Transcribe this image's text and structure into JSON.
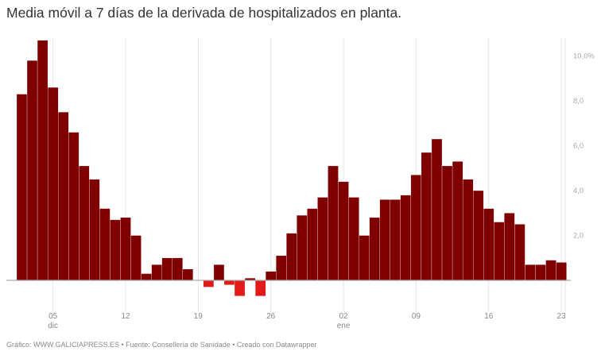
{
  "title": "Media móvil a 7 días de la derivada de hospitalizados en planta.",
  "footer": "Gráfico: WWW.GALICIAPRESS.ES • Fuente: Consellería de Sanidade • Creado con Datawrapper",
  "chart_data": {
    "type": "bar",
    "title": "Media móvil a 7 días de la derivada de hospitalizados en planta.",
    "xlabel": "",
    "ylabel": "",
    "ylim": [
      -0.8,
      10.7
    ],
    "y_ticks": [
      {
        "value": 2,
        "label": "2,0"
      },
      {
        "value": 4,
        "label": "4,0"
      },
      {
        "value": 6,
        "label": "6,0"
      },
      {
        "value": 8,
        "label": "8,0"
      },
      {
        "value": 10,
        "label": "10,0%"
      }
    ],
    "x_ticks": [
      {
        "category": "05 dic",
        "label": "05",
        "sublabel": "dic"
      },
      {
        "category": "12 dic",
        "label": "12",
        "sublabel": ""
      },
      {
        "category": "19 dic",
        "label": "19",
        "sublabel": ""
      },
      {
        "category": "26 dic",
        "label": "26",
        "sublabel": ""
      },
      {
        "category": "02 ene",
        "label": "02",
        "sublabel": "ene"
      },
      {
        "category": "09 ene",
        "label": "09",
        "sublabel": ""
      },
      {
        "category": "16 ene",
        "label": "16",
        "sublabel": ""
      },
      {
        "category": "23 ene",
        "label": "23",
        "sublabel": ""
      }
    ],
    "grid": {
      "vertical": true,
      "horizontal": false
    },
    "colors": {
      "positive": "#7f0000",
      "negative": "#e31a1c",
      "baseline": "#aaaaaa",
      "grid": "#e6e6e6"
    },
    "categories": [
      "02 dic",
      "03 dic",
      "04 dic",
      "05 dic",
      "06 dic",
      "07 dic",
      "08 dic",
      "09 dic",
      "10 dic",
      "11 dic",
      "12 dic",
      "13 dic",
      "14 dic",
      "15 dic",
      "16 dic",
      "17 dic",
      "18 dic",
      "19 dic",
      "20 dic",
      "21 dic",
      "22 dic",
      "23 dic",
      "24 dic",
      "25 dic",
      "26 dic",
      "27 dic",
      "28 dic",
      "29 dic",
      "30 dic",
      "31 dic",
      "01 ene",
      "02 ene",
      "03 ene",
      "04 ene",
      "05 ene",
      "06 ene",
      "07 ene",
      "08 ene",
      "09 ene",
      "10 ene",
      "11 ene",
      "12 ene",
      "13 ene",
      "14 ene",
      "15 ene",
      "16 ene",
      "17 ene",
      "18 ene",
      "19 ene",
      "20 ene",
      "21 ene",
      "22 ene",
      "23 ene"
    ],
    "values": [
      8.3,
      9.8,
      10.7,
      8.6,
      7.5,
      6.6,
      5.1,
      4.5,
      3.2,
      2.7,
      2.8,
      2.0,
      0.3,
      0.7,
      1.0,
      1.0,
      0.5,
      0.0,
      -0.3,
      0.7,
      -0.2,
      -0.7,
      0.1,
      -0.7,
      0.4,
      1.1,
      2.1,
      2.9,
      3.2,
      3.7,
      5.1,
      4.4,
      3.7,
      2.0,
      2.8,
      3.6,
      3.6,
      3.8,
      4.7,
      5.7,
      6.3,
      5.1,
      5.3,
      4.5,
      4.0,
      3.2,
      2.6,
      3.0,
      2.5,
      0.7,
      0.7,
      0.9,
      0.8
    ]
  }
}
